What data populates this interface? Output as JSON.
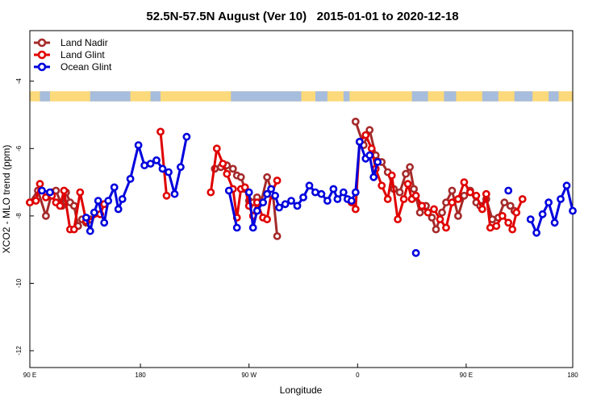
{
  "chart_data": {
    "type": "line",
    "title": "52.5N-57.5N August (Ver 10)   2015-01-01 to 2020-12-18",
    "xlabel": "Longitude",
    "ylabel": "XCO2 - MLO trend (ppm)",
    "xlim": [
      -90,
      180
    ],
    "ylim": [
      -12.5,
      -2.5
    ],
    "x_ticks": [
      {
        "v": -90,
        "label": "90 E"
      },
      {
        "v": -35,
        "label": "180"
      },
      {
        "v": 19,
        "label": "90 W"
      },
      {
        "v": 73,
        "label": "0"
      },
      {
        "v": 127,
        "label": "90 E"
      },
      {
        "v": 180,
        "label": "180"
      }
    ],
    "y_ticks": [
      {
        "v": -4,
        "label": "-4"
      },
      {
        "v": -6,
        "label": "-6"
      },
      {
        "v": -8,
        "label": "-8"
      },
      {
        "v": -10,
        "label": "-10"
      },
      {
        "v": -12,
        "label": "-12"
      }
    ],
    "legend": {
      "position": "top-left"
    },
    "land_strip_band": [
      -4.6,
      -4.3
    ],
    "series": [
      {
        "name": "Land Nadir",
        "color": "#a52a2a",
        "segments": [
          [
            [
              -90,
              -7.6
            ],
            [
              -86,
              -7.25
            ],
            [
              -82,
              -8.0
            ],
            [
              -79,
              -7.3
            ],
            [
              -77,
              -7.25
            ],
            [
              -74,
              -7.7
            ],
            [
              -72,
              -7.3
            ],
            [
              -70,
              -7.6
            ],
            [
              -68,
              -7.7
            ],
            [
              -66,
              -8.3
            ],
            [
              -64,
              -8.1
            ],
            [
              -62,
              -8.2
            ],
            [
              -60,
              -8.1
            ]
          ],
          [
            [
              2,
              -6.6
            ],
            [
              5,
              -6.55
            ],
            [
              8,
              -6.5
            ],
            [
              11,
              -6.6
            ],
            [
              13,
              -6.8
            ],
            [
              15,
              -6.85
            ],
            [
              17,
              -7.2
            ],
            [
              19,
              -7.55
            ],
            [
              21,
              -7.6
            ],
            [
              23,
              -7.45
            ],
            [
              25,
              -7.6
            ],
            [
              28,
              -6.85
            ],
            [
              31,
              -7.4
            ],
            [
              33,
              -8.6
            ]
          ],
          [
            [
              72,
              -5.2
            ],
            [
              76,
              -5.9
            ],
            [
              79,
              -5.45
            ],
            [
              82,
              -6.2
            ],
            [
              85,
              -6.4
            ],
            [
              88,
              -6.7
            ],
            [
              91,
              -7.2
            ],
            [
              94,
              -7.3
            ],
            [
              97,
              -6.75
            ],
            [
              99,
              -6.55
            ],
            [
              101,
              -7.2
            ],
            [
              104,
              -7.9
            ],
            [
              107,
              -7.7
            ],
            [
              110,
              -8.05
            ],
            [
              112,
              -8.4
            ],
            [
              115,
              -7.9
            ],
            [
              117,
              -7.6
            ],
            [
              120,
              -7.25
            ],
            [
              123,
              -8.0
            ],
            [
              126,
              -7.4
            ],
            [
              129,
              -7.25
            ],
            [
              132,
              -7.6
            ],
            [
              134,
              -7.7
            ],
            [
              137,
              -7.5
            ],
            [
              140,
              -8.1
            ],
            [
              143,
              -8.05
            ],
            [
              146,
              -7.6
            ],
            [
              149,
              -7.7
            ],
            [
              151,
              -7.85
            ]
          ]
        ]
      },
      {
        "name": "Land Glint",
        "color": "#e00000",
        "segments": [
          [
            [
              -90,
              -7.6
            ],
            [
              -87,
              -7.55
            ],
            [
              -85,
              -7.05
            ],
            [
              -82,
              -7.45
            ],
            [
              -79,
              -7.4
            ],
            [
              -77,
              -7.6
            ],
            [
              -75,
              -7.7
            ],
            [
              -73,
              -7.25
            ],
            [
              -70,
              -8.4
            ],
            [
              -68,
              -8.4
            ],
            [
              -65,
              -7.3
            ],
            [
              -62,
              -8.15
            ],
            [
              -55,
              -7.95
            ],
            [
              -53,
              -7.65
            ]
          ],
          [
            [
              -25,
              -5.5
            ],
            [
              -22,
              -7.4
            ]
          ],
          [
            [
              0,
              -7.3
            ],
            [
              3,
              -6.0
            ],
            [
              6,
              -6.45
            ],
            [
              8,
              -6.75
            ],
            [
              11,
              -7.2
            ],
            [
              13,
              -8.05
            ],
            [
              15,
              -7.2
            ],
            [
              17,
              -7.15
            ],
            [
              19,
              -7.7
            ],
            [
              21,
              -8.0
            ],
            [
              23,
              -7.6
            ],
            [
              26,
              -8.05
            ],
            [
              28,
              -8.1
            ],
            [
              30,
              -7.35
            ],
            [
              33,
              -6.95
            ]
          ],
          [
            [
              70,
              -7.6
            ],
            [
              72,
              -7.8
            ],
            [
              74,
              -5.8
            ],
            [
              77,
              -5.6
            ],
            [
              80,
              -6.0
            ],
            [
              82,
              -6.6
            ],
            [
              85,
              -7.1
            ],
            [
              88,
              -7.5
            ],
            [
              90,
              -6.8
            ],
            [
              93,
              -8.1
            ],
            [
              96,
              -7.5
            ],
            [
              98,
              -7.05
            ],
            [
              100,
              -7.5
            ],
            [
              102,
              -7.4
            ],
            [
              105,
              -7.7
            ],
            [
              108,
              -7.9
            ],
            [
              111,
              -7.8
            ],
            [
              114,
              -8.1
            ],
            [
              117,
              -8.35
            ],
            [
              120,
              -7.6
            ],
            [
              123,
              -7.5
            ],
            [
              126,
              -7.0
            ],
            [
              129,
              -7.3
            ],
            [
              132,
              -7.4
            ],
            [
              135,
              -7.8
            ],
            [
              137,
              -7.35
            ],
            [
              139,
              -8.35
            ],
            [
              142,
              -8.3
            ],
            [
              145,
              -8.0
            ],
            [
              148,
              -8.2
            ],
            [
              150,
              -8.4
            ],
            [
              152,
              -7.9
            ],
            [
              155,
              -7.5
            ]
          ]
        ]
      },
      {
        "name": "Ocean Glint",
        "color": "#0000dd",
        "segments": [
          [
            [
              -84,
              -7.25
            ],
            [
              -80,
              -7.3
            ]
          ],
          [
            [
              -62,
              -8.05
            ],
            [
              -60,
              -8.45
            ],
            [
              -58,
              -7.9
            ],
            [
              -56,
              -7.55
            ],
            [
              -53,
              -8.2
            ],
            [
              -51,
              -7.55
            ],
            [
              -48,
              -7.15
            ],
            [
              -46,
              -7.8
            ],
            [
              -44,
              -7.5
            ],
            [
              -40,
              -6.9
            ],
            [
              -36,
              -5.9
            ],
            [
              -33,
              -6.5
            ],
            [
              -30,
              -6.45
            ],
            [
              -27,
              -6.35
            ],
            [
              -24,
              -6.6
            ],
            [
              -21,
              -6.7
            ],
            [
              -18,
              -7.35
            ],
            [
              -15,
              -6.55
            ],
            [
              -12,
              -5.65
            ]
          ],
          [
            [
              9,
              -7.25
            ],
            [
              13,
              -8.35
            ]
          ],
          [
            [
              19,
              -7.3
            ],
            [
              21,
              -8.35
            ],
            [
              23,
              -7.85
            ],
            [
              26,
              -7.6
            ],
            [
              28,
              -7.35
            ],
            [
              30,
              -7.2
            ],
            [
              32,
              -7.4
            ],
            [
              34,
              -7.75
            ],
            [
              37,
              -7.65
            ],
            [
              40,
              -7.55
            ],
            [
              43,
              -7.7
            ],
            [
              46,
              -7.45
            ],
            [
              49,
              -7.1
            ],
            [
              52,
              -7.3
            ],
            [
              55,
              -7.35
            ],
            [
              58,
              -7.55
            ],
            [
              61,
              -7.2
            ],
            [
              63,
              -7.5
            ],
            [
              66,
              -7.3
            ],
            [
              68,
              -7.5
            ],
            [
              70,
              -7.55
            ],
            [
              72,
              -7.3
            ],
            [
              74,
              -5.8
            ],
            [
              77,
              -6.3
            ],
            [
              79,
              -6.2
            ],
            [
              81,
              -6.85
            ],
            [
              83,
              -6.4
            ]
          ],
          [
            [
              102,
              -9.1
            ]
          ],
          [
            [
              148,
              -7.25
            ]
          ],
          [
            [
              159,
              -8.1
            ],
            [
              162,
              -8.5
            ],
            [
              165,
              -7.95
            ],
            [
              168,
              -7.6
            ],
            [
              171,
              -8.2
            ],
            [
              174,
              -7.5
            ],
            [
              177,
              -7.1
            ],
            [
              180,
              -7.85
            ]
          ]
        ]
      }
    ]
  }
}
